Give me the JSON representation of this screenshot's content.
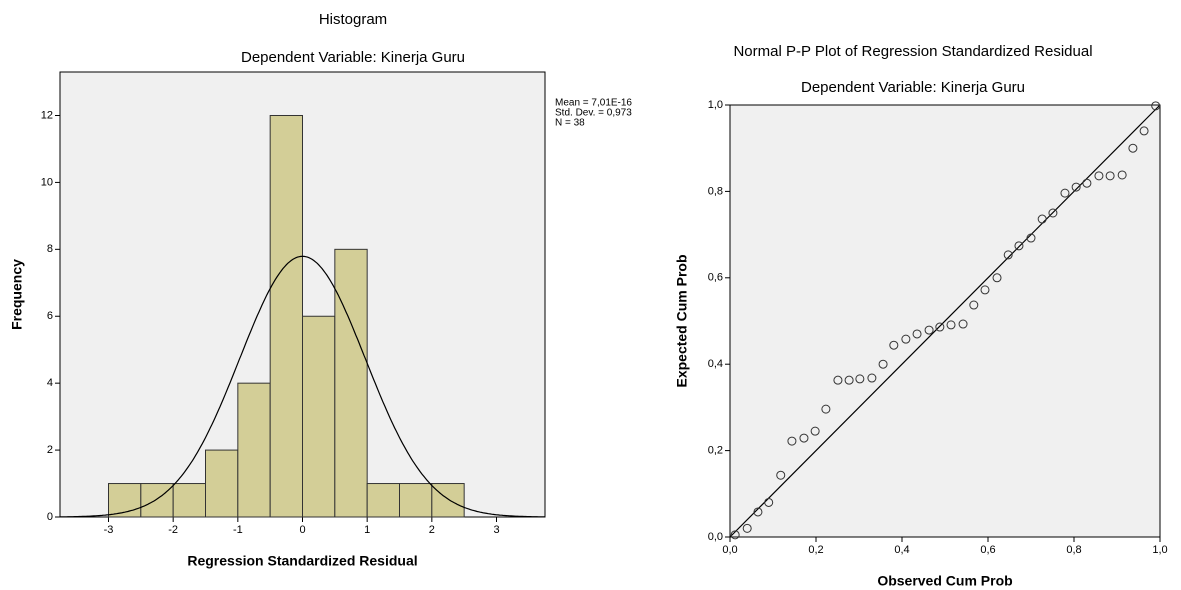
{
  "chart_data": [
    {
      "type": "histogram",
      "title": "Histogram",
      "subtitle": "Dependent Variable: Kinerja Guru",
      "x_label": "Regression Standardized Residual",
      "y_label": "Frequency",
      "bins": [
        -3,
        -2.5,
        -2,
        -1.5,
        -1,
        -0.5,
        0,
        0.5,
        1,
        1.5,
        2,
        2.5
      ],
      "values": [
        1,
        1,
        1,
        2,
        4,
        12,
        6,
        8,
        1,
        1,
        1
      ],
      "color": "#d3ce97",
      "xlim": [
        -3.75,
        3.75
      ],
      "xticks": [
        -3,
        -2,
        -1,
        0,
        1,
        2,
        3
      ],
      "ylim": [
        0,
        13.3
      ],
      "yticks": [
        0,
        2,
        4,
        6,
        8,
        10,
        12
      ],
      "normal_curve": {
        "mean": 7.01e-16,
        "std": 0.973,
        "n": 38,
        "labels": [
          "Mean = 7,01E-16",
          "Std. Dev. = 0,973",
          "N = 38"
        ]
      }
    },
    {
      "type": "scatter",
      "title": "Normal P-P Plot of Regression Standardized Residual",
      "subtitle": "Dependent Variable: Kinerja Guru",
      "x_label": "Observed Cum Prob",
      "y_label": "Expected Cum Prob",
      "x": [
        0.012,
        0.04,
        0.065,
        0.09,
        0.118,
        0.144,
        0.172,
        0.198,
        0.223,
        0.251,
        0.277,
        0.302,
        0.33,
        0.356,
        0.381,
        0.409,
        0.435,
        0.463,
        0.488,
        0.514,
        0.542,
        0.567,
        0.593,
        0.621,
        0.647,
        0.672,
        0.7,
        0.726,
        0.751,
        0.779,
        0.805,
        0.83,
        0.858,
        0.884,
        0.912,
        0.937,
        0.963,
        0.99
      ],
      "values": [
        0.005,
        0.02,
        0.058,
        0.08,
        0.143,
        0.222,
        0.229,
        0.245,
        0.296,
        0.363,
        0.363,
        0.366,
        0.368,
        0.4,
        0.444,
        0.458,
        0.47,
        0.479,
        0.486,
        0.491,
        0.493,
        0.537,
        0.572,
        0.6,
        0.653,
        0.674,
        0.692,
        0.736,
        0.75,
        0.796,
        0.81,
        0.819,
        0.836,
        0.836,
        0.838,
        0.9,
        0.94,
        0.998
      ],
      "xlim": [
        0,
        1
      ],
      "ylim": [
        0,
        1
      ],
      "xticks": [
        {
          "value": 0,
          "label": "0,0"
        },
        {
          "value": 0.2,
          "label": "0,2"
        },
        {
          "value": 0.4,
          "label": "0,4"
        },
        {
          "value": 0.6,
          "label": "0,6"
        },
        {
          "value": 0.8,
          "label": "0,8"
        },
        {
          "value": 1,
          "label": "1,0"
        }
      ],
      "yticks": [
        {
          "value": 0,
          "label": "0,0"
        },
        {
          "value": 0.2,
          "label": "0,2"
        },
        {
          "value": 0.4,
          "label": "0,4"
        },
        {
          "value": 0.6,
          "label": "0,6"
        },
        {
          "value": 0.8,
          "label": "0,8"
        },
        {
          "value": 1,
          "label": "1,0"
        }
      ]
    }
  ]
}
